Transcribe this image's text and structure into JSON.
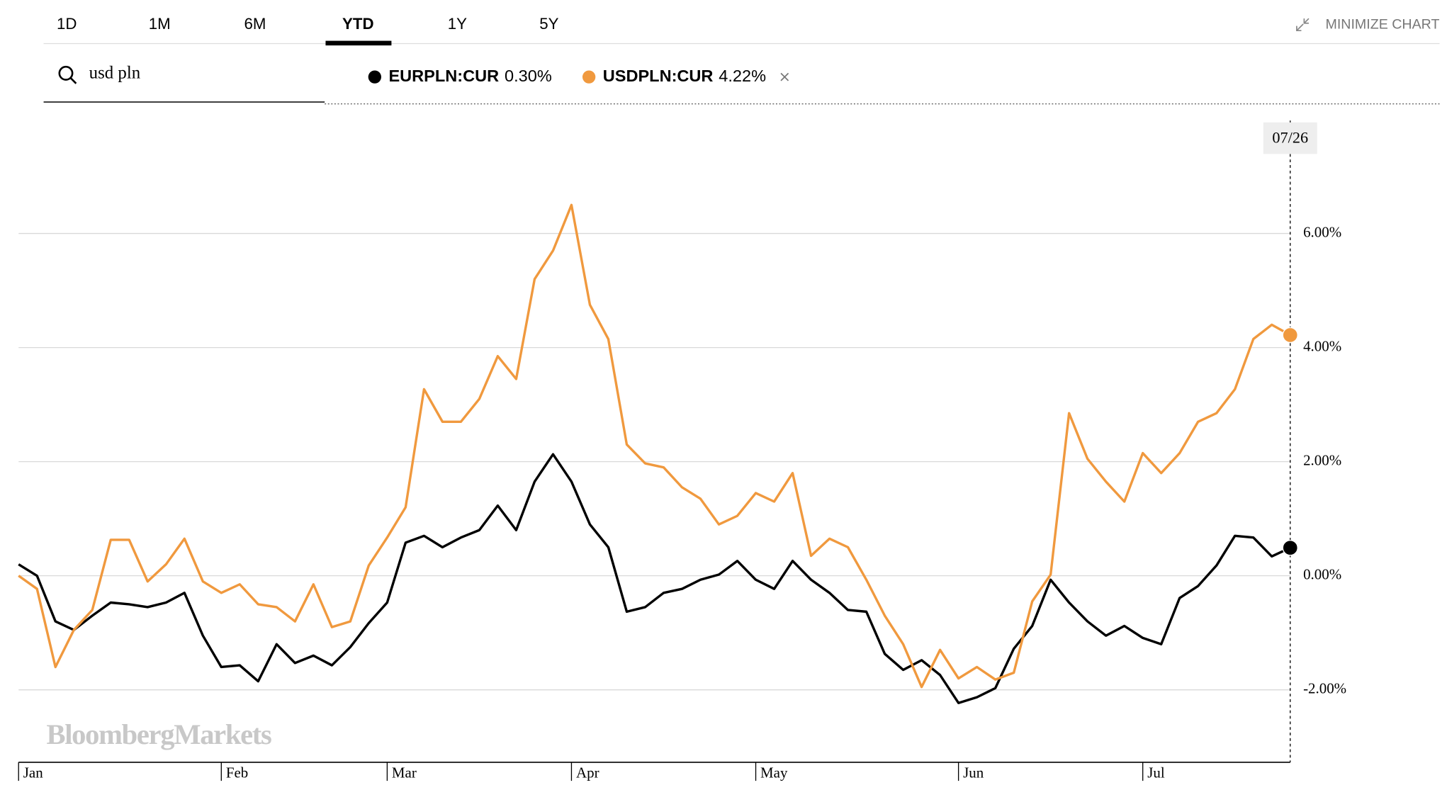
{
  "toolbar": {
    "ranges": [
      "1D",
      "1M",
      "6M",
      "YTD",
      "1Y",
      "5Y"
    ],
    "active": "YTD",
    "minimize": "MINIMIZE CHART"
  },
  "search": {
    "query": "usd pln"
  },
  "chart_data": {
    "type": "line",
    "categories": [
      "Jan",
      null,
      null,
      null,
      null,
      null,
      null,
      null,
      null,
      null,
      null,
      "Feb",
      null,
      null,
      null,
      null,
      null,
      null,
      null,
      null,
      "Mar",
      null,
      null,
      null,
      null,
      null,
      null,
      null,
      null,
      null,
      "Apr",
      null,
      null,
      null,
      null,
      null,
      null,
      null,
      null,
      null,
      "May",
      null,
      null,
      null,
      null,
      null,
      null,
      null,
      null,
      null,
      null,
      "Jun",
      null,
      null,
      null,
      null,
      null,
      null,
      null,
      null,
      null,
      "Jul",
      null,
      null,
      null,
      null,
      null,
      null,
      null,
      null
    ],
    "series": [
      {
        "name": "EURPLN:CUR",
        "change": "0.30%",
        "color": "#000000",
        "values": [
          0.2,
          0,
          -0.8,
          -0.95,
          -0.7,
          -0.47,
          -0.5,
          -0.55,
          -0.47,
          -0.3,
          -1.05,
          -1.6,
          -1.57,
          -1.85,
          -1.2,
          -1.53,
          -1.4,
          -1.57,
          -1.25,
          -0.83,
          -0.47,
          0.58,
          0.7,
          0.5,
          0.67,
          0.8,
          1.23,
          0.8,
          1.65,
          2.13,
          1.65,
          0.9,
          0.5,
          -0.63,
          -0.55,
          -0.3,
          -0.23,
          -0.07,
          0.02,
          0.26,
          -0.07,
          -0.23,
          0.26,
          -0.07,
          -0.3,
          -0.6,
          -0.63,
          -1.37,
          -1.65,
          -1.48,
          -1.74,
          -2.23,
          -2.13,
          -1.97,
          -1.28,
          -0.88,
          -0.07,
          -0.47,
          -0.8,
          -1.05,
          -0.88,
          -1.09,
          -1.2,
          -0.39,
          -0.18,
          0.18,
          0.7,
          0.67,
          0.34,
          0.49
        ]
      },
      {
        "name": "USDPLN:CUR",
        "change": "4.22%",
        "color": "#f0993e",
        "values": [
          0,
          -0.23,
          -1.6,
          -0.95,
          -0.6,
          0.63,
          0.63,
          -0.1,
          0.2,
          0.65,
          -0.1,
          -0.3,
          -0.15,
          -0.5,
          -0.55,
          -0.8,
          -0.15,
          -0.9,
          -0.8,
          0.18,
          0.67,
          1.2,
          3.27,
          2.7,
          2.7,
          3.1,
          3.85,
          3.45,
          5.2,
          5.7,
          6.5,
          4.75,
          4.15,
          2.3,
          1.97,
          1.9,
          1.55,
          1.35,
          0.9,
          1.05,
          1.45,
          1.3,
          1.8,
          0.35,
          0.65,
          0.5,
          -0.07,
          -0.7,
          -1.2,
          -1.95,
          -1.3,
          -1.8,
          -1.6,
          -1.82,
          -1.7,
          -0.45,
          0.02,
          2.85,
          2.05,
          1.65,
          1.3,
          2.15,
          1.8,
          2.15,
          2.7,
          2.85,
          3.27,
          4.15,
          4.4,
          4.22
        ]
      }
    ],
    "ylim": [
      -3.27,
      7.98
    ],
    "yticks": [
      {
        "value": -2,
        "label": "-2.00%"
      },
      {
        "value": 0,
        "label": "0.00%"
      },
      {
        "value": 2,
        "label": "2.00%"
      },
      {
        "value": 4,
        "label": "4.00%"
      },
      {
        "value": 6,
        "label": "6.00%"
      }
    ],
    "grid": true,
    "date_label": "07/26",
    "watermark": "BloombergMarkets"
  }
}
